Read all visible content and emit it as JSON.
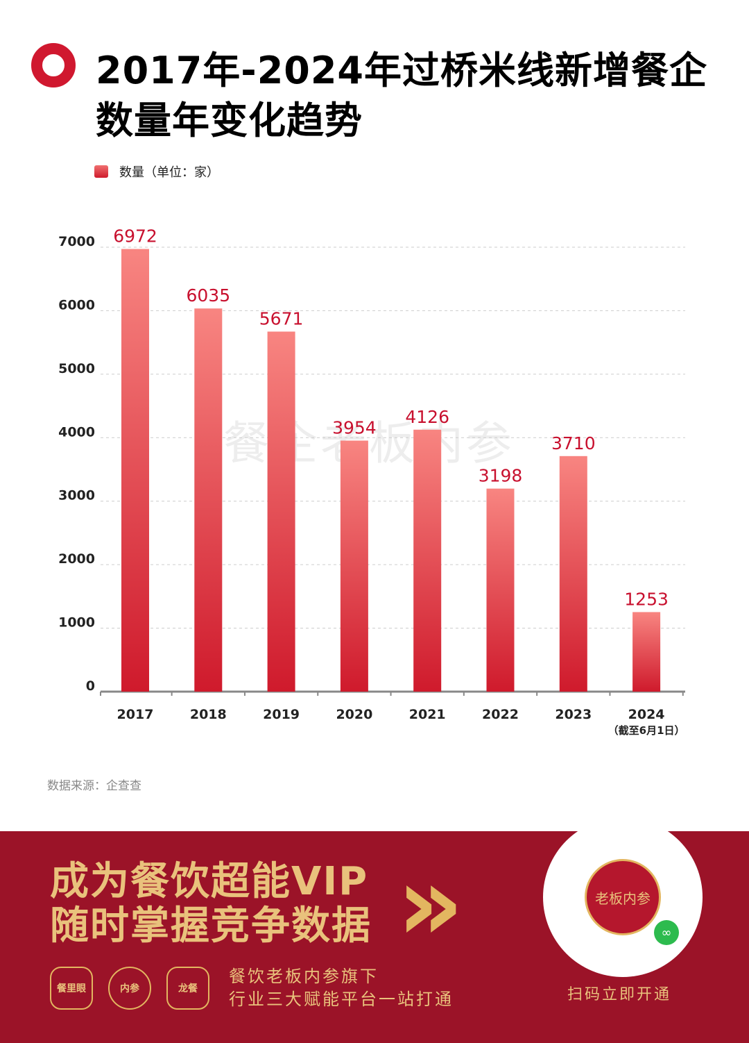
{
  "title_line1": "2017年-2024年过桥米线新增餐企",
  "title_line2": "数量年变化趋势",
  "watermark": "餐企老板内参",
  "chart_data": {
    "type": "bar",
    "title": "2017年-2024年过桥米线新增餐企数量年变化趋势",
    "legend": "数量（单位：家）",
    "categories": [
      "2017",
      "2018",
      "2019",
      "2020",
      "2021",
      "2022",
      "2023",
      "2024"
    ],
    "category_notes": [
      "",
      "",
      "",
      "",
      "",
      "",
      "",
      "（截至6月1日）"
    ],
    "values": [
      6972,
      6035,
      5671,
      3954,
      4126,
      3198,
      3710,
      1253
    ],
    "yticks": [
      0,
      1000,
      2000,
      3000,
      4000,
      5000,
      6000,
      7000
    ],
    "ylim": [
      0,
      7000
    ],
    "grid": true,
    "colors": {
      "bar_top": "#f88581",
      "bar_bottom": "#cf1a2c",
      "label": "#c8102e"
    }
  },
  "source": "数据来源：企查查",
  "footer": {
    "slogan_line1": "成为餐饮超能VIP",
    "slogan_line2": "随时掌握竞争数据",
    "chevrons": "»",
    "badges": [
      "餐里眼",
      "内参",
      "龙餐"
    ],
    "sub_line1": "餐饮老板内参旗下",
    "sub_line2": "行业三大赋能平台一站打通",
    "qr_seal": "老板内参",
    "scan_label": "扫码立即开通"
  }
}
